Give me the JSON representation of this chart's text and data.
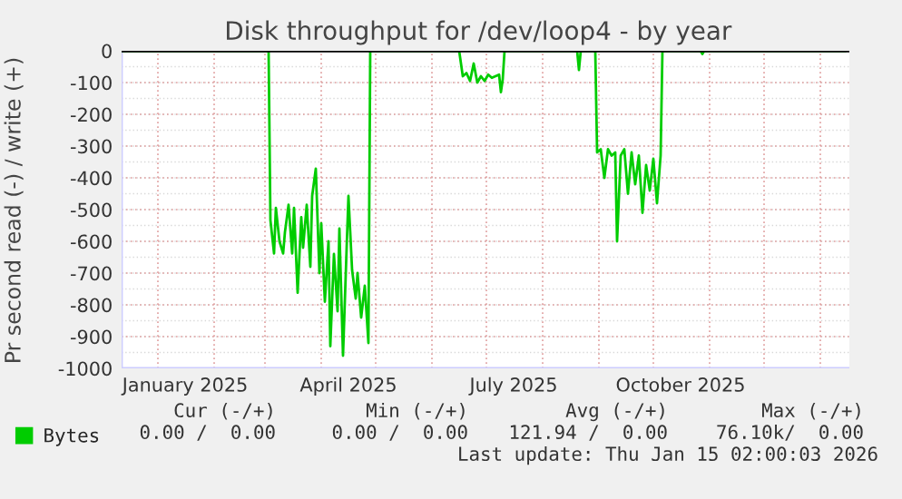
{
  "chart_data": {
    "type": "line",
    "title": "Disk throughput for /dev/loop4 - by year",
    "ylabel": "Pr second read (-) / write (+)",
    "series": [
      {
        "name": "Bytes",
        "color": "#00cc00",
        "x": [
          "2024-12-12",
          "2025-03-03",
          "2025-03-04",
          "2025-03-06",
          "2025-03-07",
          "2025-03-09",
          "2025-03-11",
          "2025-03-12",
          "2025-03-14",
          "2025-03-16",
          "2025-03-17",
          "2025-03-19",
          "2025-03-21",
          "2025-03-22",
          "2025-03-24",
          "2025-03-26",
          "2025-03-27",
          "2025-03-29",
          "2025-03-31",
          "2025-04-01",
          "2025-04-03",
          "2025-04-05",
          "2025-04-06",
          "2025-04-08",
          "2025-04-10",
          "2025-04-11",
          "2025-04-13",
          "2025-04-15",
          "2025-04-16",
          "2025-04-18",
          "2025-04-20",
          "2025-04-21",
          "2025-04-23",
          "2025-04-25",
          "2025-04-27",
          "2025-04-28",
          "2025-06-16",
          "2025-06-18",
          "2025-06-20",
          "2025-06-22",
          "2025-06-24",
          "2025-06-26",
          "2025-06-28",
          "2025-06-30",
          "2025-07-02",
          "2025-07-04",
          "2025-07-06",
          "2025-07-08",
          "2025-07-09",
          "2025-07-10",
          "2025-07-11",
          "2025-08-20",
          "2025-08-21",
          "2025-08-22",
          "2025-08-30",
          "2025-08-31",
          "2025-09-02",
          "2025-09-04",
          "2025-09-06",
          "2025-09-08",
          "2025-09-10",
          "2025-09-11",
          "2025-09-13",
          "2025-09-15",
          "2025-09-17",
          "2025-09-19",
          "2025-09-21",
          "2025-09-23",
          "2025-09-25",
          "2025-09-27",
          "2025-09-29",
          "2025-10-01",
          "2025-10-03",
          "2025-10-05",
          "2025-10-06",
          "2025-10-27",
          "2025-10-28",
          "2025-10-29",
          "2026-01-15"
        ],
        "values": [
          0,
          0,
          -533,
          -638,
          -495,
          -600,
          -638,
          -571,
          -485,
          -638,
          -495,
          -762,
          -524,
          -620,
          -485,
          -680,
          -457,
          -371,
          -700,
          -543,
          -790,
          -600,
          -930,
          -640,
          -820,
          -560,
          -960,
          -620,
          -457,
          -690,
          -780,
          -700,
          -840,
          -740,
          -920,
          0,
          0,
          -80,
          -70,
          -95,
          -40,
          -100,
          -80,
          -95,
          -75,
          -85,
          -80,
          -75,
          -130,
          -90,
          0,
          0,
          -60,
          0,
          0,
          -320,
          -310,
          -400,
          -310,
          -330,
          -320,
          -600,
          -330,
          -310,
          -450,
          -320,
          -420,
          -330,
          -510,
          -360,
          -440,
          -340,
          -480,
          -330,
          0,
          0,
          -10,
          0,
          0
        ]
      }
    ],
    "xlim": [
      "2024-12-12",
      "2026-01-17"
    ],
    "xticks": [
      {
        "value": "2025-01-01",
        "label": null
      },
      {
        "value": "2025-01-16",
        "label": "January 2025"
      },
      {
        "value": "2025-02-01",
        "label": null
      },
      {
        "value": "2025-03-01",
        "label": null
      },
      {
        "value": "2025-04-01",
        "label": null
      },
      {
        "value": "2025-04-16",
        "label": "April 2025"
      },
      {
        "value": "2025-05-01",
        "label": null
      },
      {
        "value": "2025-06-01",
        "label": null
      },
      {
        "value": "2025-07-01",
        "label": null
      },
      {
        "value": "2025-07-16",
        "label": "July 2025"
      },
      {
        "value": "2025-08-01",
        "label": null
      },
      {
        "value": "2025-09-01",
        "label": null
      },
      {
        "value": "2025-10-01",
        "label": null
      },
      {
        "value": "2025-10-16",
        "label": "October 2025"
      },
      {
        "value": "2025-11-01",
        "label": null
      },
      {
        "value": "2025-12-01",
        "label": null
      },
      {
        "value": "2026-01-01",
        "label": null
      }
    ],
    "ylim": [
      -1000,
      0
    ],
    "yticks": [
      -1000,
      -900,
      -800,
      -700,
      -600,
      -500,
      -400,
      -300,
      -200,
      -100,
      0
    ],
    "ref_lines": [
      {
        "axis": "y",
        "value": 0,
        "color": "#000000"
      }
    ],
    "grid": true,
    "legend": "bottom left",
    "annotations": [
      "Cur (-/+)",
      "Min (-/+)",
      "Avg (-/+)",
      "Max (-/+)",
      "0.00 /  0.00",
      "0.00 /  0.00",
      "121.94 /  0.00",
      "76.10k/  0.00",
      "Last update: Thu Jan 15 02:00:03 2026"
    ]
  }
}
